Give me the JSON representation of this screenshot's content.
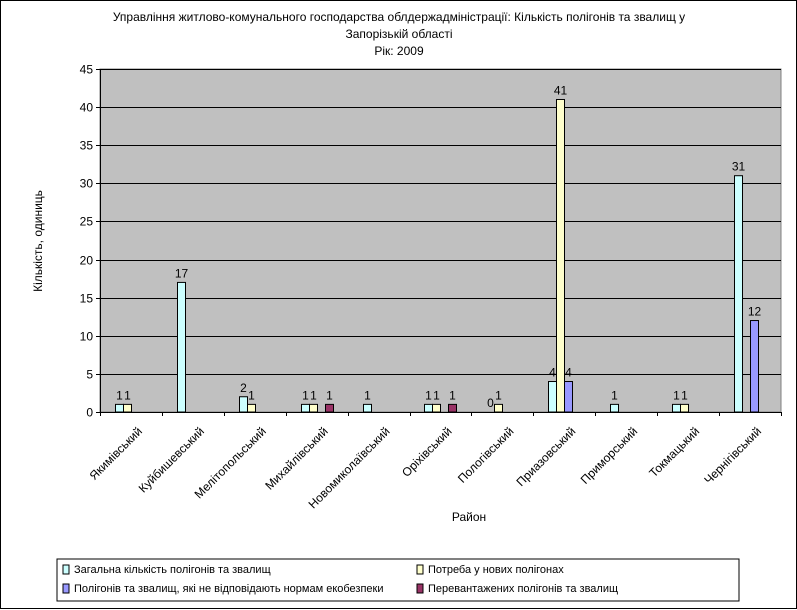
{
  "chart_data": {
    "type": "bar",
    "title_lines": [
      "Управління житлово-комунального господарства облдержадміністрації: Кількість полігонів та звалищ у",
      "Запорізькій області",
      "Рік: 2009"
    ],
    "xlabel": "Район",
    "ylabel": "Кількість, одиниць",
    "ylim": [
      0,
      45
    ],
    "yticks": [
      0,
      5,
      10,
      15,
      20,
      25,
      30,
      35,
      40,
      45
    ],
    "grid": true,
    "legend_position": "bottom",
    "categories": [
      "Якимівський",
      "Куйбишевський",
      "Мелітопольський",
      "Михайлівський",
      "Новомиколаївський",
      "Оріхівський",
      "Пологівський",
      "Приазовський",
      "Приморський",
      "Токмацький",
      "Чернігівський"
    ],
    "series": [
      {
        "name": "Загальна кількість полігонів та звалищ",
        "color": "#CCFFFF",
        "values": [
          1,
          17,
          2,
          1,
          1,
          1,
          0,
          4,
          1,
          1,
          31
        ]
      },
      {
        "name": "Потреба у нових полігонах",
        "color": "#FFFFCC",
        "values": [
          1,
          null,
          1,
          1,
          null,
          1,
          1,
          41,
          null,
          1,
          null
        ]
      },
      {
        "name": "Полігонів та звалищ, які не відповідають нормам екобезпеки",
        "color": "#9999FF",
        "values": [
          null,
          null,
          null,
          null,
          null,
          null,
          null,
          4,
          null,
          null,
          12
        ]
      },
      {
        "name": "Перевантажених полігонів та звалищ",
        "color": "#993366",
        "values": [
          null,
          null,
          null,
          1,
          null,
          1,
          null,
          null,
          null,
          null,
          null
        ]
      }
    ],
    "plot_background": "#C0C0C0",
    "gridline_color": "#000000"
  }
}
